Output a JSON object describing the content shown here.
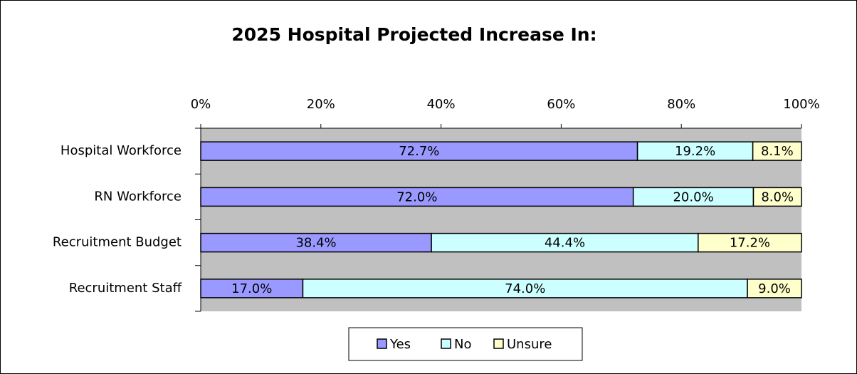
{
  "chart_data": {
    "type": "stacked-barh",
    "title": "2025 Hospital Projected Increase In:",
    "categories": [
      "Hospital Workforce",
      "RN Workforce",
      "Recruitment Budget",
      "Recruitment Staff"
    ],
    "series": [
      {
        "name": "Yes",
        "color": "#9999ff",
        "values": [
          72.7,
          72.0,
          38.4,
          17.0
        ],
        "value_labels": [
          "72.7%",
          "72.0%",
          "38.4%",
          "17.0%"
        ]
      },
      {
        "name": "No",
        "color": "#ccffff",
        "values": [
          19.2,
          20.0,
          44.4,
          74.0
        ],
        "value_labels": [
          "19.2%",
          "20.0%",
          "44.4%",
          "74.0%"
        ]
      },
      {
        "name": "Unsure",
        "color": "#ffffcc",
        "values": [
          8.1,
          8.0,
          17.2,
          9.0
        ],
        "value_labels": [
          "8.1%",
          "8.0%",
          "17.2%",
          "9.0%"
        ]
      }
    ],
    "xlim": [
      0,
      100
    ],
    "xticks": [
      {
        "value": 0,
        "label": "0%"
      },
      {
        "value": 20,
        "label": "20%"
      },
      {
        "value": 40,
        "label": "40%"
      },
      {
        "value": 60,
        "label": "60%"
      },
      {
        "value": 80,
        "label": "80%"
      },
      {
        "value": 100,
        "label": "100%"
      }
    ],
    "grid": false,
    "legend": "bottom",
    "plot_background": "#c0c0c0"
  }
}
